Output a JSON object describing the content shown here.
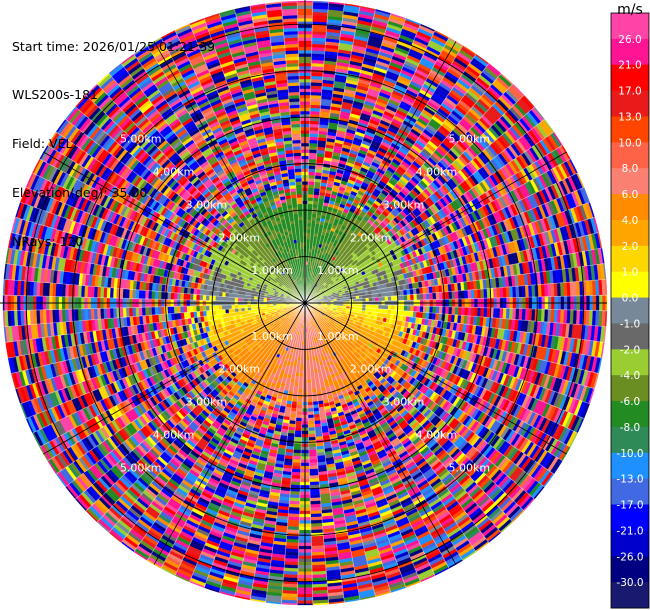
{
  "header": {
    "start_time": "Start time: 2026/01/25 01:21:39",
    "instrument": "WLS200s-181",
    "field": "Field: VEL",
    "elevation": "Elevation(deg): 35.00",
    "nrays": "NRays: 120"
  },
  "chart_data": {
    "type": "ppi",
    "field": "VEL",
    "units_label": "m/s",
    "elevation_deg": 35.0,
    "n_rays": 120,
    "max_range_km": 6.5,
    "range_ring_labels": [
      "1.00km",
      "2.00km",
      "3.00km",
      "4.00km",
      "5.00km"
    ],
    "colorbar": {
      "ticks": [
        "26.0",
        "21.0",
        "17.0",
        "13.0",
        "10.0",
        "8.0",
        "6.0",
        "4.0",
        "2.0",
        "1.0",
        "0.0",
        "-1.0",
        "-2.0",
        "-4.0",
        "-6.0",
        "-8.0",
        "-10.0",
        "-13.0",
        "-17.0",
        "-21.0",
        "-26.0",
        "-30.0"
      ],
      "colors": [
        "#ff44a8",
        "#ff1493",
        "#ff0000",
        "#e81a1a",
        "#ff4500",
        "#ff6347",
        "#fa8072",
        "#ff8c00",
        "#ffa500",
        "#ffd700",
        "#ffff00",
        "#778899",
        "#696969",
        "#9acd32",
        "#6b8e23",
        "#228b22",
        "#2e8b57",
        "#1e90ff",
        "#4169e1",
        "#0000ff",
        "#0000cd",
        "#000080",
        "#191970"
      ]
    },
    "velocity_pattern": {
      "inner_clean_radius_km": 2.15,
      "inner_noisy_radius_km": 2.55,
      "positive_toward_azimuth_deg": 180,
      "peak_speed_ms": 6.5
    }
  }
}
